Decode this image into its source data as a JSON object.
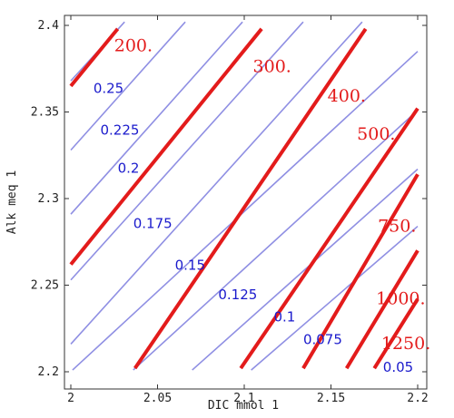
{
  "chart_data": {
    "type": "line",
    "title": "",
    "xlabel": "DIC mmol 1",
    "ylabel": "Alk meq 1",
    "xlim": [
      2.0,
      2.2
    ],
    "ylim": [
      2.2,
      2.4
    ],
    "xticks": [
      "2",
      "2.05",
      "2.1",
      "2.15",
      "2.2"
    ],
    "yticks": [
      "2.2",
      "2.25",
      "2.3",
      "2.35",
      "2.4"
    ],
    "grid": false,
    "series": [
      {
        "group": "blue",
        "color": "#8f8fe3",
        "lines": [
          {
            "label": "0.25",
            "points": [
              [
                2.0,
                2.368
              ],
              [
                2.031,
                2.402
              ]
            ],
            "label_at": [
              2.013,
              2.361
            ]
          },
          {
            "label": "0.225",
            "points": [
              [
                2.0,
                2.328
              ],
              [
                2.066,
                2.402
              ]
            ],
            "label_at": [
              2.017,
              2.337
            ]
          },
          {
            "label": "0.2",
            "points": [
              [
                2.0,
                2.291
              ],
              [
                2.099,
                2.402
              ]
            ],
            "label_at": [
              2.027,
              2.315
            ]
          },
          {
            "label": "0.175",
            "points": [
              [
                2.0,
                2.253
              ],
              [
                2.134,
                2.402
              ]
            ],
            "label_at": [
              2.036,
              2.283
            ]
          },
          {
            "label": "0.15",
            "points": [
              [
                2.0,
                2.216
              ],
              [
                2.168,
                2.402
              ]
            ],
            "label_at": [
              2.06,
              2.259
            ]
          },
          {
            "label": "0.125",
            "points": [
              [
                2.001,
                2.201
              ],
              [
                2.2,
                2.385
              ]
            ],
            "label_at": [
              2.085,
              2.242
            ]
          },
          {
            "label": "0.1",
            "points": [
              [
                2.036,
                2.201
              ],
              [
                2.2,
                2.351
              ]
            ],
            "label_at": [
              2.117,
              2.229
            ]
          },
          {
            "label": "0.075",
            "points": [
              [
                2.07,
                2.201
              ],
              [
                2.2,
                2.317
              ]
            ],
            "label_at": [
              2.134,
              2.216
            ]
          },
          {
            "label": "0.05",
            "points": [
              [
                2.104,
                2.201
              ],
              [
                2.2,
                2.284
              ]
            ],
            "label_at": [
              2.18,
              2.2
            ]
          }
        ]
      },
      {
        "group": "red",
        "color": "#e31b1b",
        "lines": [
          {
            "label": "200.",
            "points": [
              [
                2.0,
                2.365
              ],
              [
                2.027,
                2.398
              ]
            ],
            "label_at": [
              2.025,
              2.385
            ]
          },
          {
            "label": "300.",
            "points": [
              [
                2.0,
                2.262
              ],
              [
                2.11,
                2.398
              ]
            ],
            "label_at": [
              2.105,
              2.373
            ]
          },
          {
            "label": "400.",
            "points": [
              [
                2.037,
                2.202
              ],
              [
                2.17,
                2.398
              ]
            ],
            "label_at": [
              2.148,
              2.356
            ]
          },
          {
            "label": "500.",
            "points": [
              [
                2.098,
                2.202
              ],
              [
                2.2,
                2.352
              ]
            ],
            "label_at": [
              2.165,
              2.334
            ]
          },
          {
            "label": "750.",
            "points": [
              [
                2.134,
                2.202
              ],
              [
                2.2,
                2.314
              ]
            ],
            "label_at": [
              2.177,
              2.281
            ]
          },
          {
            "label": "1000.",
            "points": [
              [
                2.159,
                2.202
              ],
              [
                2.2,
                2.27
              ]
            ],
            "label_at": [
              2.176,
              2.239
            ]
          },
          {
            "label": "1250.",
            "points": [
              [
                2.175,
                2.202
              ],
              [
                2.2,
                2.242
              ]
            ],
            "label_at": [
              2.179,
              2.213
            ]
          }
        ]
      }
    ]
  }
}
